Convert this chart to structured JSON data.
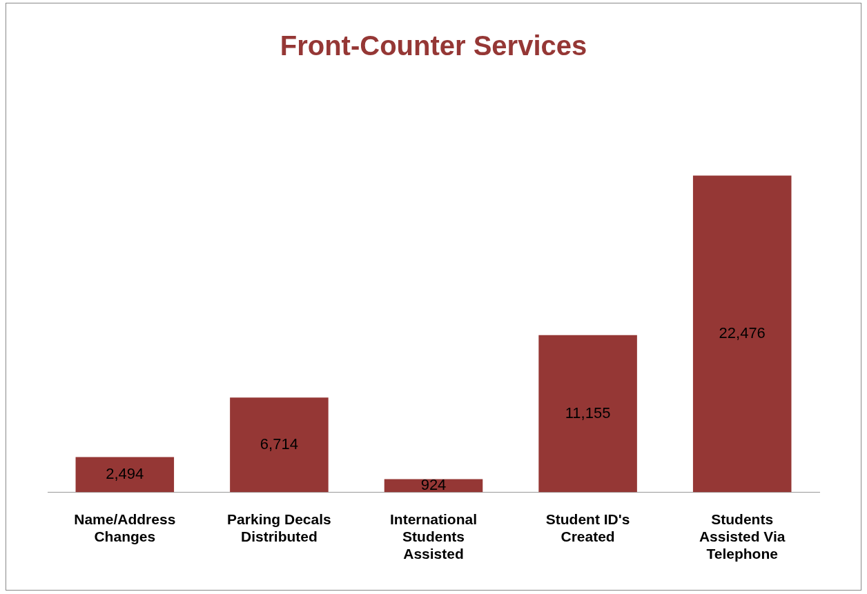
{
  "chart_data": {
    "type": "bar",
    "title": "Front-Counter Services",
    "categories": [
      "Name/Address Changes",
      "Parking Decals Distributed",
      "International Students Assisted",
      "Student ID's Created",
      "Students Assisted Via Telephone"
    ],
    "values": [
      2494,
      6714,
      924,
      11155,
      22476
    ],
    "color": "#953735",
    "value_labels": [
      "2,494",
      "6,714",
      "924",
      "11,155",
      "22,476"
    ],
    "grid": false,
    "legend": false
  }
}
